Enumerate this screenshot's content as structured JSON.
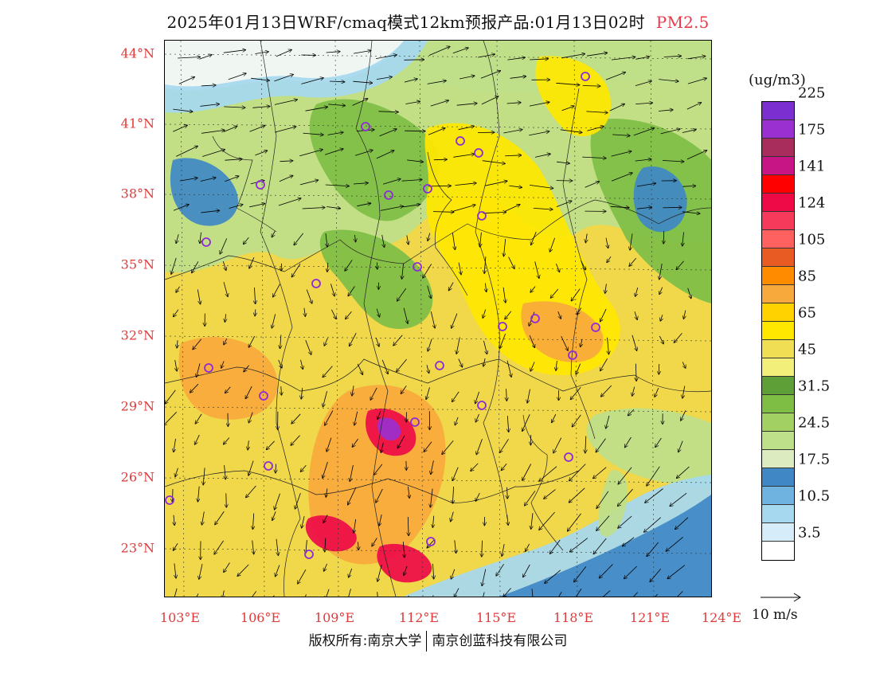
{
  "title": {
    "main": "2025年01月13日WRF/cmaq模式12km预报产品:01月13日02时",
    "species": "PM2.5"
  },
  "axes": {
    "lat_labels": [
      "44°N",
      "41°N",
      "38°N",
      "35°N",
      "32°N",
      "29°N",
      "26°N",
      "23°N"
    ],
    "lon_labels": [
      "103°E",
      "106°E",
      "109°E",
      "112°E",
      "115°E",
      "118°E",
      "121°E",
      "124°E"
    ],
    "lat_range": [
      21,
      44.4
    ],
    "lon_range": [
      102.8,
      124
    ]
  },
  "legend": {
    "unit": "(ug/m3)",
    "colors": [
      "#ffffff",
      "#d6ecf8",
      "#a6d8f0",
      "#6fb3e0",
      "#3f88c5",
      "#dcebc0",
      "#bfe08a",
      "#a3d062",
      "#7ebe45",
      "#5e9f38",
      "#f2f07a",
      "#f0df55",
      "#ffe700",
      "#ffd200",
      "#f8a93c",
      "#ff8c00",
      "#e85c24",
      "#ff6060",
      "#f53a5b",
      "#ee0a47",
      "#ff0000",
      "#c71585",
      "#a82d5c",
      "#9b30d0",
      "#7b2fd0"
    ],
    "tick_labels": [
      "3.5",
      "10.5",
      "17.5",
      "24.5",
      "31.5",
      "45",
      "65",
      "85",
      "105",
      "124",
      "141",
      "175",
      "225"
    ]
  },
  "wind_reference": {
    "label": "10 m/s"
  },
  "copyright": {
    "left": "版权所有:南京大学",
    "right": "南京创蓝科技有限公司"
  },
  "map_colors": {
    "background": "#f0d84a",
    "water": "#f4f8fc",
    "sea_light": "#a6d8f0",
    "sea_dark": "#3f88c5",
    "green_light": "#bfe08a",
    "green_dark": "#7ebe45",
    "yellow": "#ffe700",
    "orange": "#f8a93c",
    "red": "#ee0a47",
    "purple": "#9b30d0",
    "city_marker": "#8e2bd8"
  }
}
